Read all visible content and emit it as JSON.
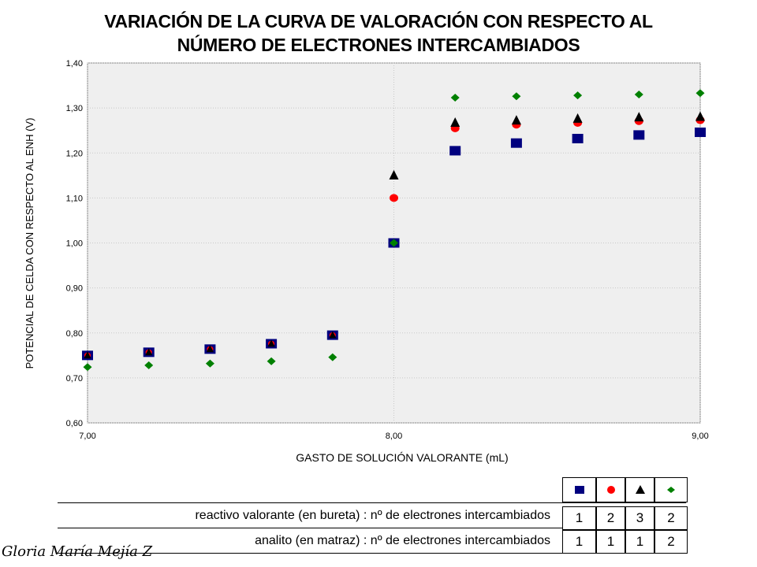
{
  "title_line1": "VARIACIÓN DE LA CURVA DE VALORACIÓN CON RESPECTO AL",
  "title_line2": "NÚMERO DE ELECTRONES INTERCAMBIADOS",
  "chart_data": {
    "type": "scatter",
    "title": "VARIACIÓN DE LA CURVA DE VALORACIÓN CON RESPECTO AL NÚMERO DE ELECTRONES INTERCAMBIADOS",
    "xlabel": "GASTO DE SOLUCIÓN  VALORANTE (mL)",
    "ylabel": "POTENCIAL DE CELDA CON RESPECTO AL ENH (V)",
    "xlim": [
      7.0,
      9.0
    ],
    "ylim": [
      0.6,
      1.4
    ],
    "x_ticks": [
      "7,00",
      "8,00",
      "9,00"
    ],
    "y_ticks": [
      "0,60",
      "0,70",
      "0,80",
      "0,90",
      "1,00",
      "1,10",
      "1,20",
      "1,30",
      "1,40"
    ],
    "grid": true,
    "legend_placement": "bottom-right table",
    "series": [
      {
        "marker": "square",
        "color": "#00007f",
        "x": [
          7.0,
          7.2,
          7.4,
          7.6,
          7.8,
          8.0,
          8.2,
          8.4,
          8.6,
          8.8,
          9.0
        ],
        "y": [
          0.75,
          0.757,
          0.764,
          0.776,
          0.795,
          1.0,
          1.205,
          1.222,
          1.232,
          1.24,
          1.246
        ]
      },
      {
        "marker": "circle",
        "color": "#ff0000",
        "x": [
          7.0,
          7.2,
          7.4,
          7.6,
          7.8,
          8.0,
          8.2,
          8.4,
          8.6,
          8.8,
          9.0
        ],
        "y": [
          0.75,
          0.757,
          0.764,
          0.776,
          0.795,
          1.1,
          1.255,
          1.263,
          1.267,
          1.271,
          1.273
        ]
      },
      {
        "marker": "triangle",
        "color": "#000000",
        "x": [
          7.0,
          7.2,
          7.4,
          7.6,
          7.8,
          8.0,
          8.2,
          8.4,
          8.6,
          8.8,
          9.0
        ],
        "y": [
          0.75,
          0.757,
          0.764,
          0.776,
          0.795,
          1.15,
          1.267,
          1.272,
          1.276,
          1.279,
          1.28
        ]
      },
      {
        "marker": "diamond",
        "color": "#008000",
        "x": [
          7.0,
          7.2,
          7.4,
          7.6,
          7.8,
          8.0,
          8.2,
          8.4,
          8.6,
          8.8,
          9.0
        ],
        "y": [
          0.724,
          0.728,
          0.732,
          0.737,
          0.746,
          1.0,
          1.323,
          1.326,
          1.328,
          1.33,
          1.333
        ]
      }
    ]
  },
  "legend_table": {
    "row1_label": "reactivo valorante (en bureta) : nº de electrones intercambiados",
    "row2_label": "analito (en matraz) : nº de electrones intercambiados",
    "columns": [
      {
        "marker": "square",
        "color": "#00007f",
        "titrant": "1",
        "analyte": "1"
      },
      {
        "marker": "circle",
        "color": "#ff0000",
        "titrant": "2",
        "analyte": "1"
      },
      {
        "marker": "triangle",
        "color": "#000000",
        "titrant": "3",
        "analyte": "1"
      },
      {
        "marker": "diamond",
        "color": "#008000",
        "titrant": "2",
        "analyte": "2"
      }
    ]
  },
  "signature": "Gloria María Mejía Z"
}
